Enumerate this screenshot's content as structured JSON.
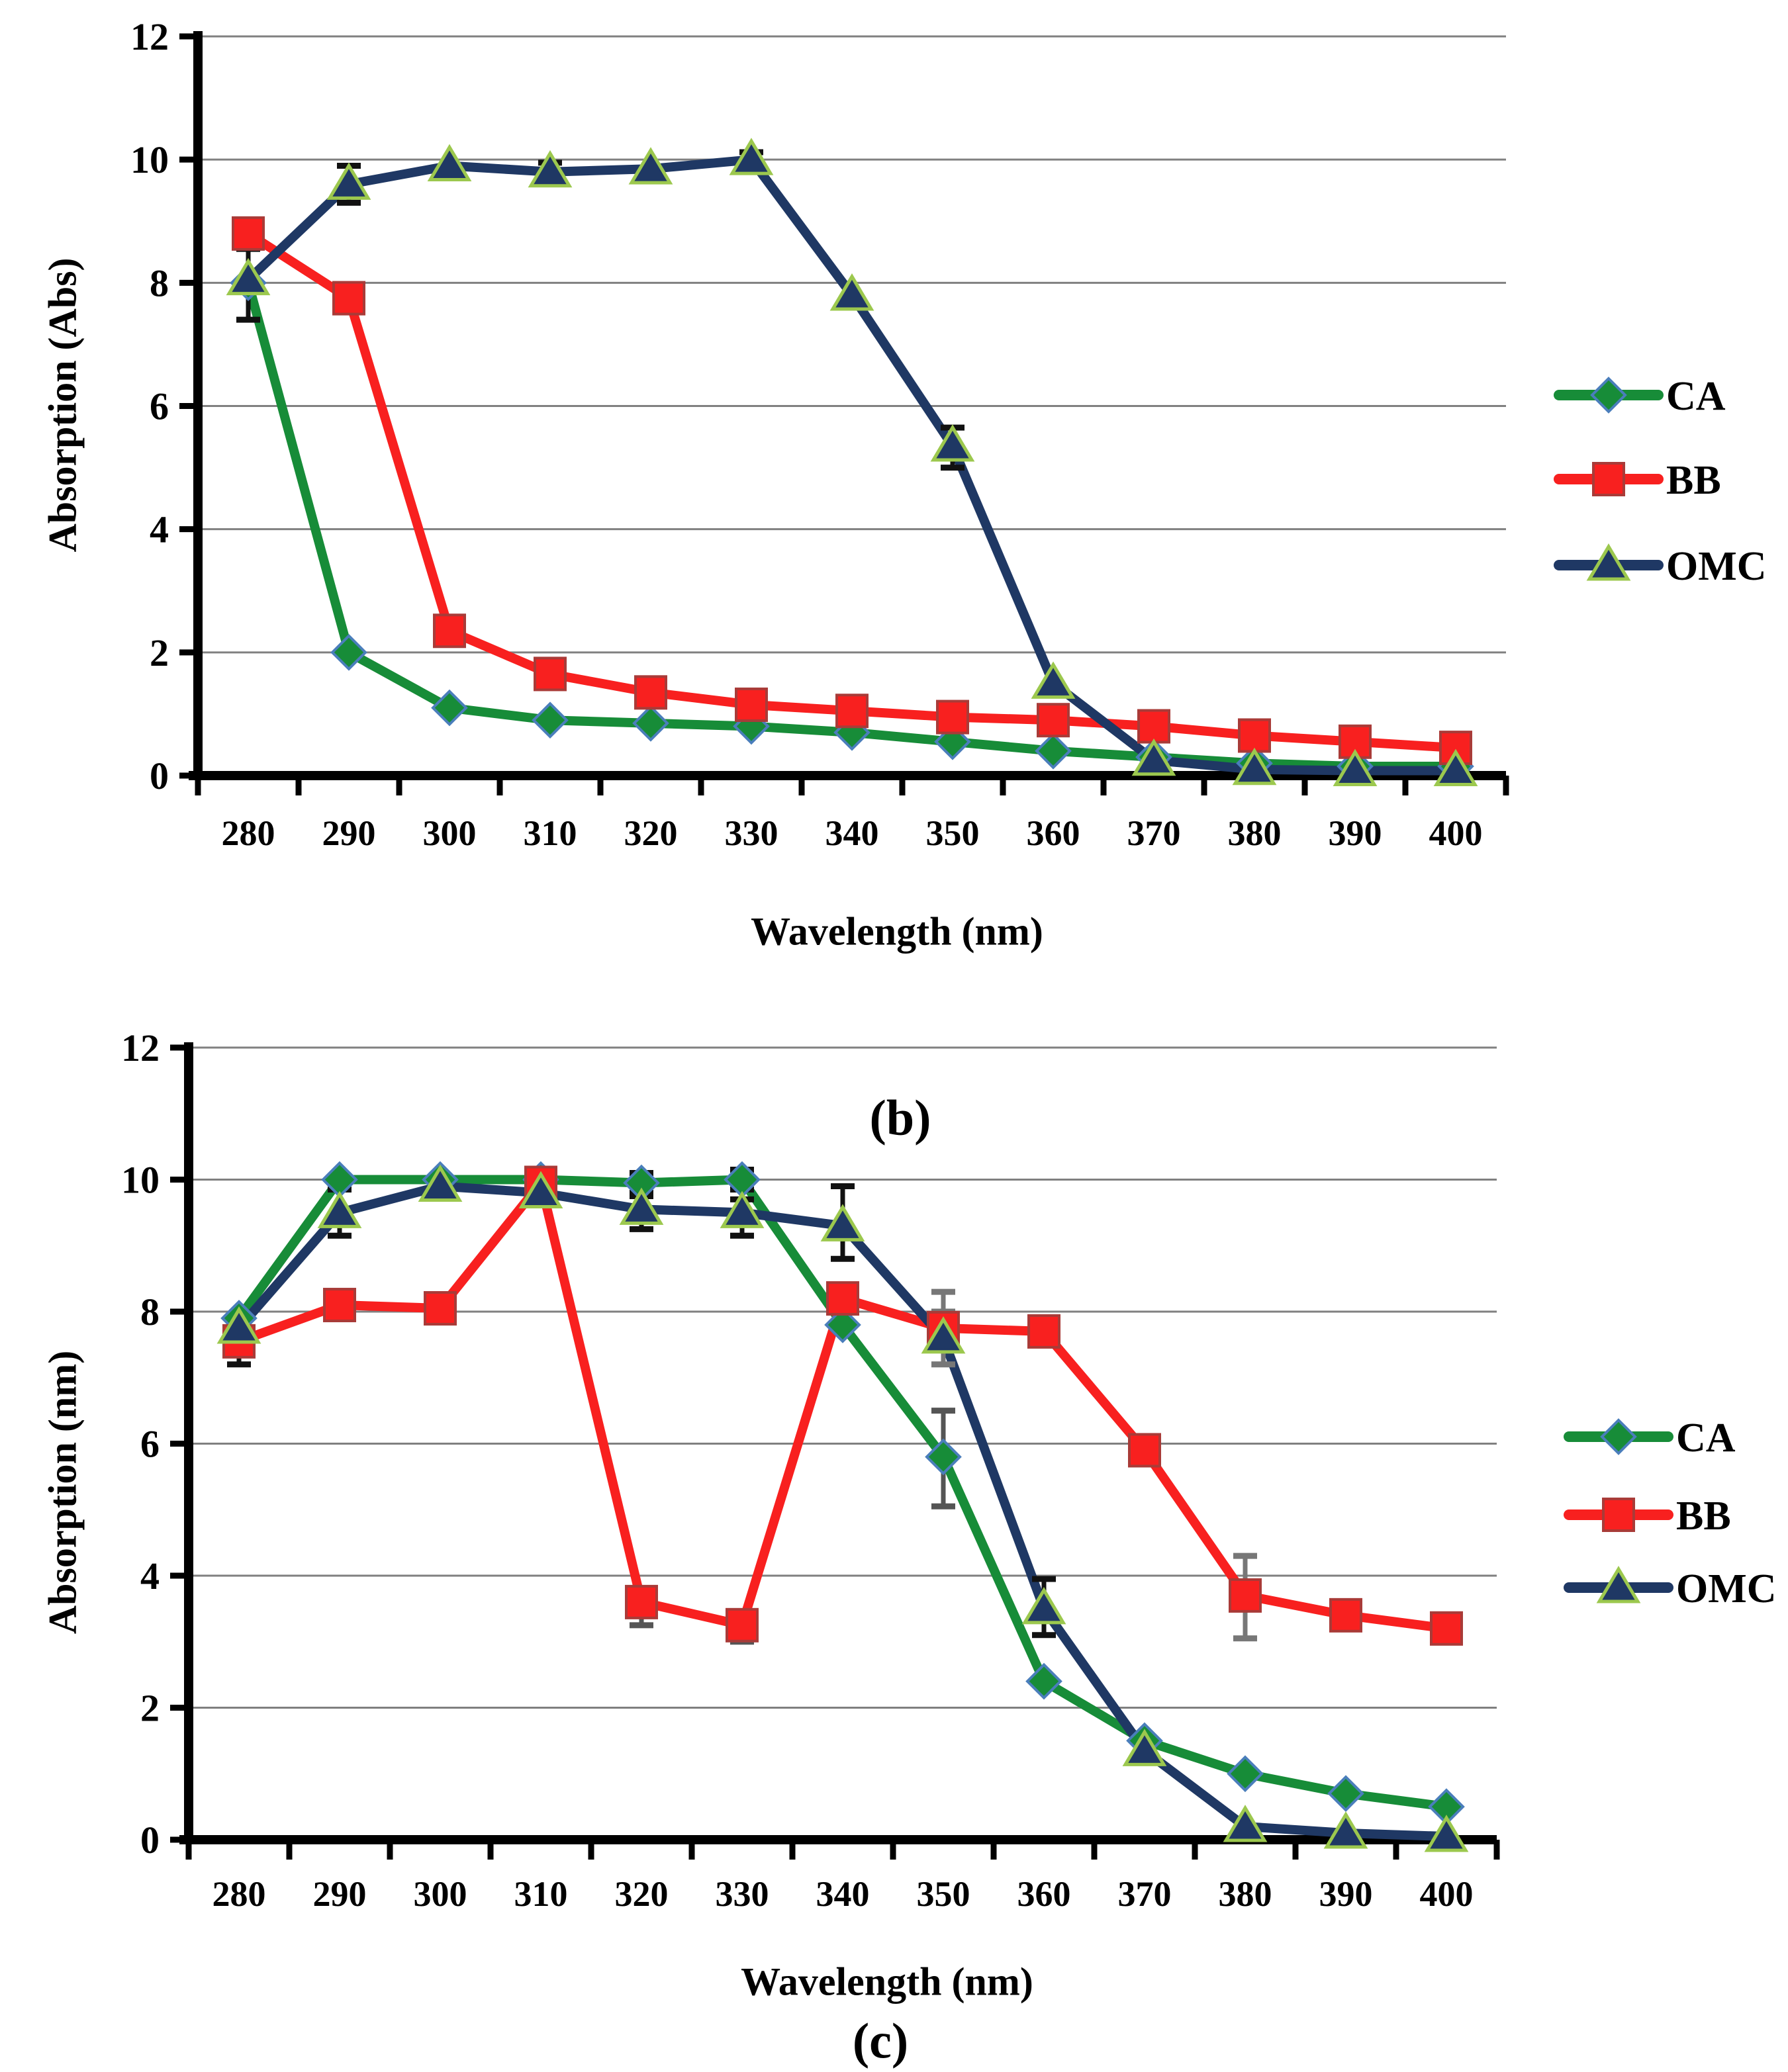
{
  "chart_data": [
    {
      "id": "b",
      "type": "line",
      "caption": "(b)",
      "xlabel": "Wavelength (nm)",
      "ylabel": "Absorption (Abs)",
      "x": [
        280,
        290,
        300,
        310,
        320,
        330,
        340,
        350,
        360,
        370,
        380,
        390,
        400
      ],
      "ylim": [
        0,
        12
      ],
      "yticks": [
        0,
        2,
        4,
        6,
        8,
        10,
        12
      ],
      "grid": true,
      "legend_position": "right",
      "series": [
        {
          "name": "CA",
          "color": "#178C38",
          "marker": "diamond",
          "marker_edge": "#4A7EBB",
          "values": [
            8.0,
            2.0,
            1.1,
            0.9,
            0.85,
            0.8,
            0.7,
            0.55,
            0.4,
            0.3,
            0.2,
            0.15,
            0.15
          ]
        },
        {
          "name": "BB",
          "color": "#F8201F",
          "marker": "square",
          "marker_edge": "#A93B38",
          "values": [
            8.8,
            7.75,
            2.35,
            1.65,
            1.35,
            1.15,
            1.05,
            0.95,
            0.9,
            0.8,
            0.65,
            0.55,
            0.45
          ]
        },
        {
          "name": "OMC",
          "color": "#1F3864",
          "marker": "triangle",
          "marker_edge": "#9CC84E",
          "values": [
            8.05,
            9.6,
            9.9,
            9.8,
            9.85,
            10.0,
            7.8,
            5.35,
            1.5,
            0.25,
            0.1,
            0.08,
            0.08
          ]
        }
      ],
      "error_bars": [
        {
          "series": "BB",
          "x": 280,
          "minus": 0.25,
          "plus": 0.15,
          "color": "#111111"
        },
        {
          "series": "OMC",
          "x": 280,
          "minus": 0.65,
          "plus": 0.6,
          "color": "#111111"
        },
        {
          "series": "OMC",
          "x": 290,
          "minus": 0.3,
          "plus": 0.3,
          "color": "#111111"
        },
        {
          "series": "OMC",
          "x": 310,
          "minus": 0.2,
          "plus": 0.15,
          "color": "#111111"
        },
        {
          "series": "OMC",
          "x": 330,
          "minus": 0.05,
          "plus": 0.12,
          "color": "#111111"
        },
        {
          "series": "OMC",
          "x": 350,
          "minus": 0.35,
          "plus": 0.3,
          "color": "#111111"
        }
      ]
    },
    {
      "id": "c",
      "type": "line",
      "caption": "(c)",
      "xlabel": "Wavelength (nm)",
      "ylabel": "Absorption (nm)",
      "x": [
        280,
        290,
        300,
        310,
        320,
        330,
        340,
        350,
        360,
        370,
        380,
        390,
        400
      ],
      "ylim": [
        0,
        12
      ],
      "yticks": [
        0,
        2,
        4,
        6,
        8,
        10,
        12
      ],
      "grid": true,
      "legend_position": "right",
      "series": [
        {
          "name": "CA",
          "color": "#178C38",
          "marker": "diamond",
          "marker_edge": "#4A7EBB",
          "values": [
            7.9,
            10.0,
            10.0,
            10.0,
            9.95,
            10.0,
            7.8,
            5.8,
            2.4,
            1.5,
            1.0,
            0.7,
            0.5
          ]
        },
        {
          "name": "BB",
          "color": "#F8201F",
          "marker": "square",
          "marker_edge": "#A93B38",
          "values": [
            7.55,
            8.1,
            8.05,
            9.95,
            3.6,
            3.25,
            8.2,
            7.75,
            7.7,
            5.9,
            3.7,
            3.4,
            3.2
          ]
        },
        {
          "name": "OMC",
          "color": "#1F3864",
          "marker": "triangle",
          "marker_edge": "#9CC84E",
          "values": [
            7.75,
            9.5,
            9.9,
            9.8,
            9.55,
            9.5,
            9.3,
            7.6,
            3.5,
            1.35,
            0.2,
            0.1,
            0.05
          ]
        }
      ],
      "error_bars": [
        {
          "series": "BB",
          "x": 280,
          "minus": 0.35,
          "plus": 0.1,
          "color": "#111111"
        },
        {
          "series": "OMC",
          "x": 290,
          "minus": 0.35,
          "plus": 0.35,
          "color": "#111111"
        },
        {
          "series": "BB",
          "x": 310,
          "minus": 0.25,
          "plus": 0.2,
          "color": "#111111"
        },
        {
          "series": "CA",
          "x": 320,
          "minus": 0.15,
          "plus": 0.15,
          "color": "#111111"
        },
        {
          "series": "OMC",
          "x": 320,
          "minus": 0.3,
          "plus": 0.2,
          "color": "#111111"
        },
        {
          "series": "BB",
          "x": 320,
          "minus": 0.35,
          "plus": 0.15,
          "color": "#555555"
        },
        {
          "series": "CA",
          "x": 330,
          "minus": 0.15,
          "plus": 0.15,
          "color": "#111111"
        },
        {
          "series": "OMC",
          "x": 330,
          "minus": 0.35,
          "plus": 0.2,
          "color": "#111111"
        },
        {
          "series": "BB",
          "x": 330,
          "minus": 0.25,
          "plus": 0.2,
          "color": "#555555"
        },
        {
          "series": "OMC",
          "x": 340,
          "minus": 0.5,
          "plus": 0.6,
          "color": "#111111"
        },
        {
          "series": "CA",
          "x": 350,
          "minus": 0.75,
          "plus": 0.7,
          "color": "#555555"
        },
        {
          "series": "OMC",
          "x": 350,
          "minus": 0.4,
          "plus": 0.4,
          "color": "#777777"
        },
        {
          "series": "BB",
          "x": 350,
          "minus": 0.3,
          "plus": 0.55,
          "color": "#777777"
        },
        {
          "series": "OMC",
          "x": 360,
          "minus": 0.4,
          "plus": 0.45,
          "color": "#111111"
        },
        {
          "series": "BB",
          "x": 380,
          "minus": 0.65,
          "plus": 0.6,
          "color": "#777777"
        },
        {
          "series": "BB",
          "x": 390,
          "minus": 0.15,
          "plus": 0.1,
          "color": "#111111"
        },
        {
          "series": "BB",
          "x": 400,
          "minus": 0.1,
          "plus": 0.1,
          "color": "#111111"
        }
      ]
    }
  ]
}
